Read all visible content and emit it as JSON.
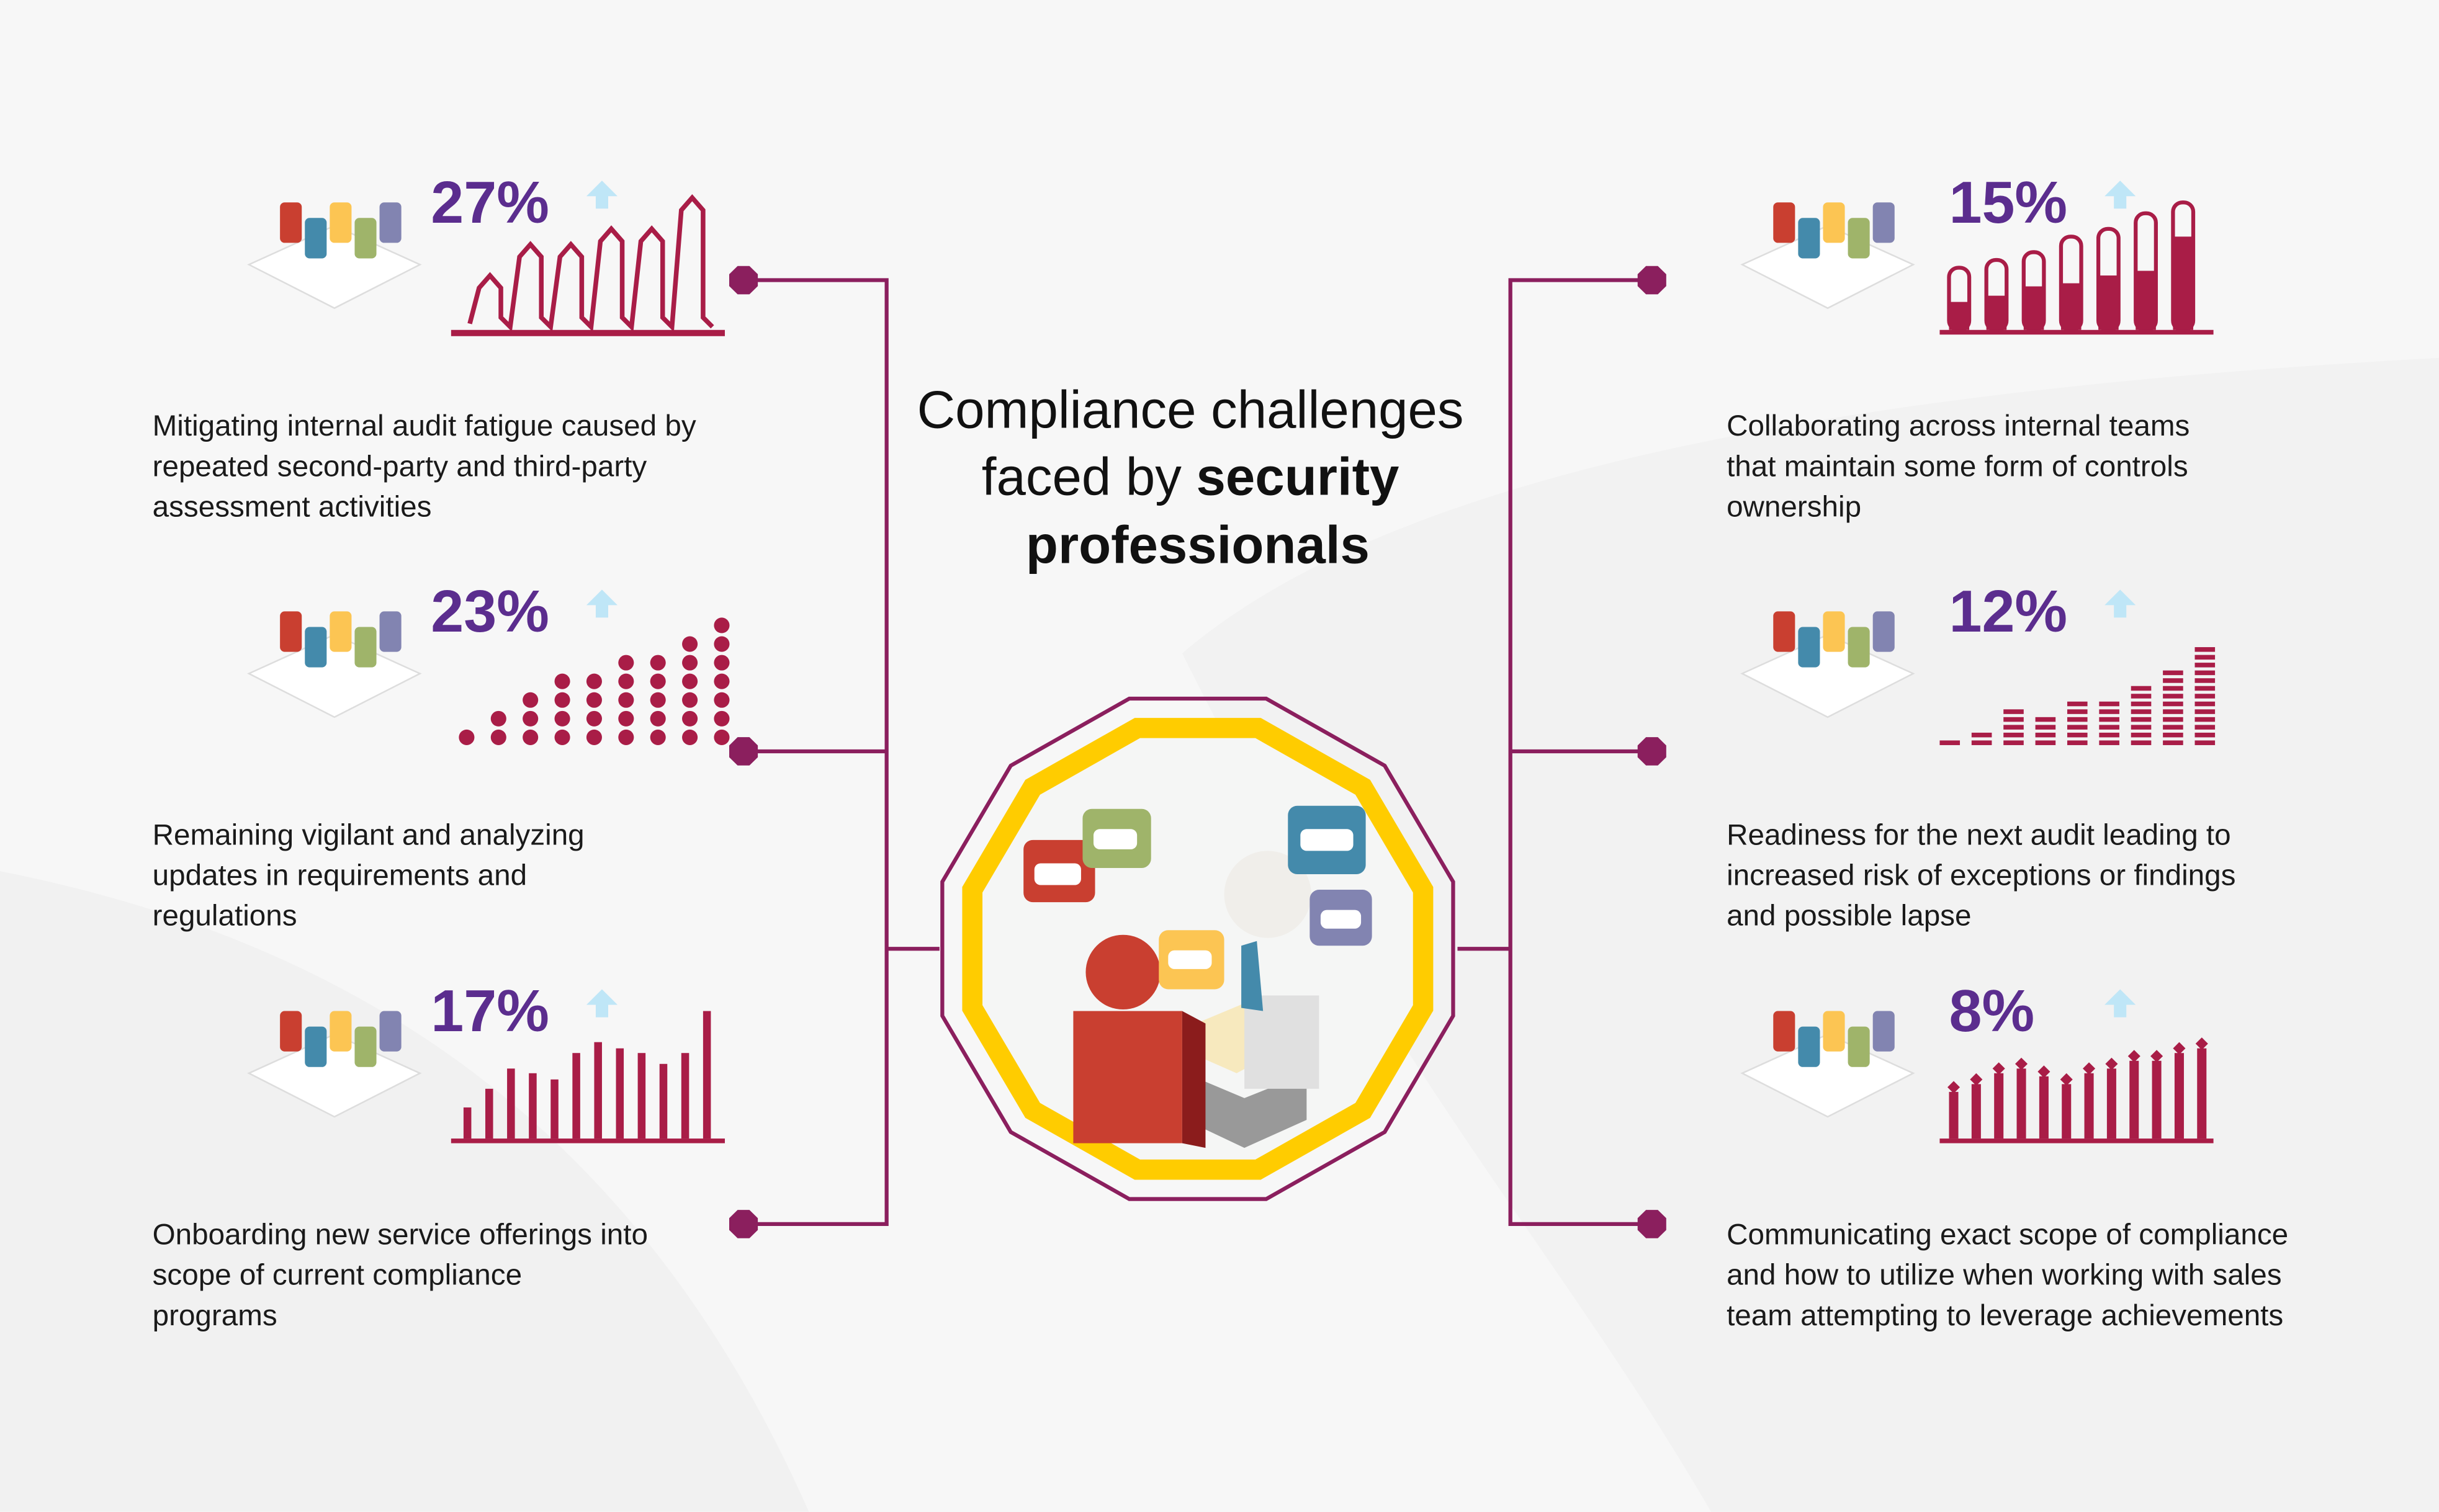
{
  "title": {
    "line1": "Compliance challenges",
    "line2_regular": "faced by ",
    "line2_bold": "security",
    "line3_bold": "professionals"
  },
  "colors": {
    "percent": "#5b2d8e",
    "chart": "#a91d47",
    "connector": "#8b1f5e",
    "ring": "#ffcc00",
    "arrow": "#bfe6f7",
    "background": "#f7f7f7"
  },
  "left_items": [
    {
      "percent": "27%",
      "chart_style": "spikes",
      "icon": "chalkboard-chart-icon",
      "lines": [
        "Mitigating internal audit fatigue caused by",
        "repeated second-party and third-party",
        "assessment activities"
      ]
    },
    {
      "percent": "23%",
      "chart_style": "dots",
      "icon": "map-pins-icon",
      "lines": [
        "Remaining vigilant and analyzing",
        "updates in requirements and",
        "regulations"
      ]
    },
    {
      "percent": "17%",
      "chart_style": "bars",
      "icon": "puzzle-team-icon",
      "lines": [
        "Onboarding new service offerings into",
        "scope of current compliance",
        "programs"
      ]
    }
  ],
  "right_items": [
    {
      "percent": "15%",
      "chart_style": "thermometer-bars",
      "icon": "strategy-board-icon",
      "lines": [
        "Collaborating across internal teams",
        "that maintain some form of controls",
        "ownership"
      ]
    },
    {
      "percent": "12%",
      "chart_style": "stacked-dashes",
      "icon": "target-chess-icon",
      "lines": [
        "Readiness for the next audit leading to",
        "increased risk of exceptions or findings",
        "and possible lapse"
      ]
    },
    {
      "percent": "8%",
      "chart_style": "lollipops",
      "icon": "contract-document-icon",
      "lines": [
        "Communicating exact scope of compliance",
        "and how to utilize when working with sales",
        "team attempting to leverage achievements"
      ]
    }
  ],
  "center_icon": "team-conversation-icon"
}
